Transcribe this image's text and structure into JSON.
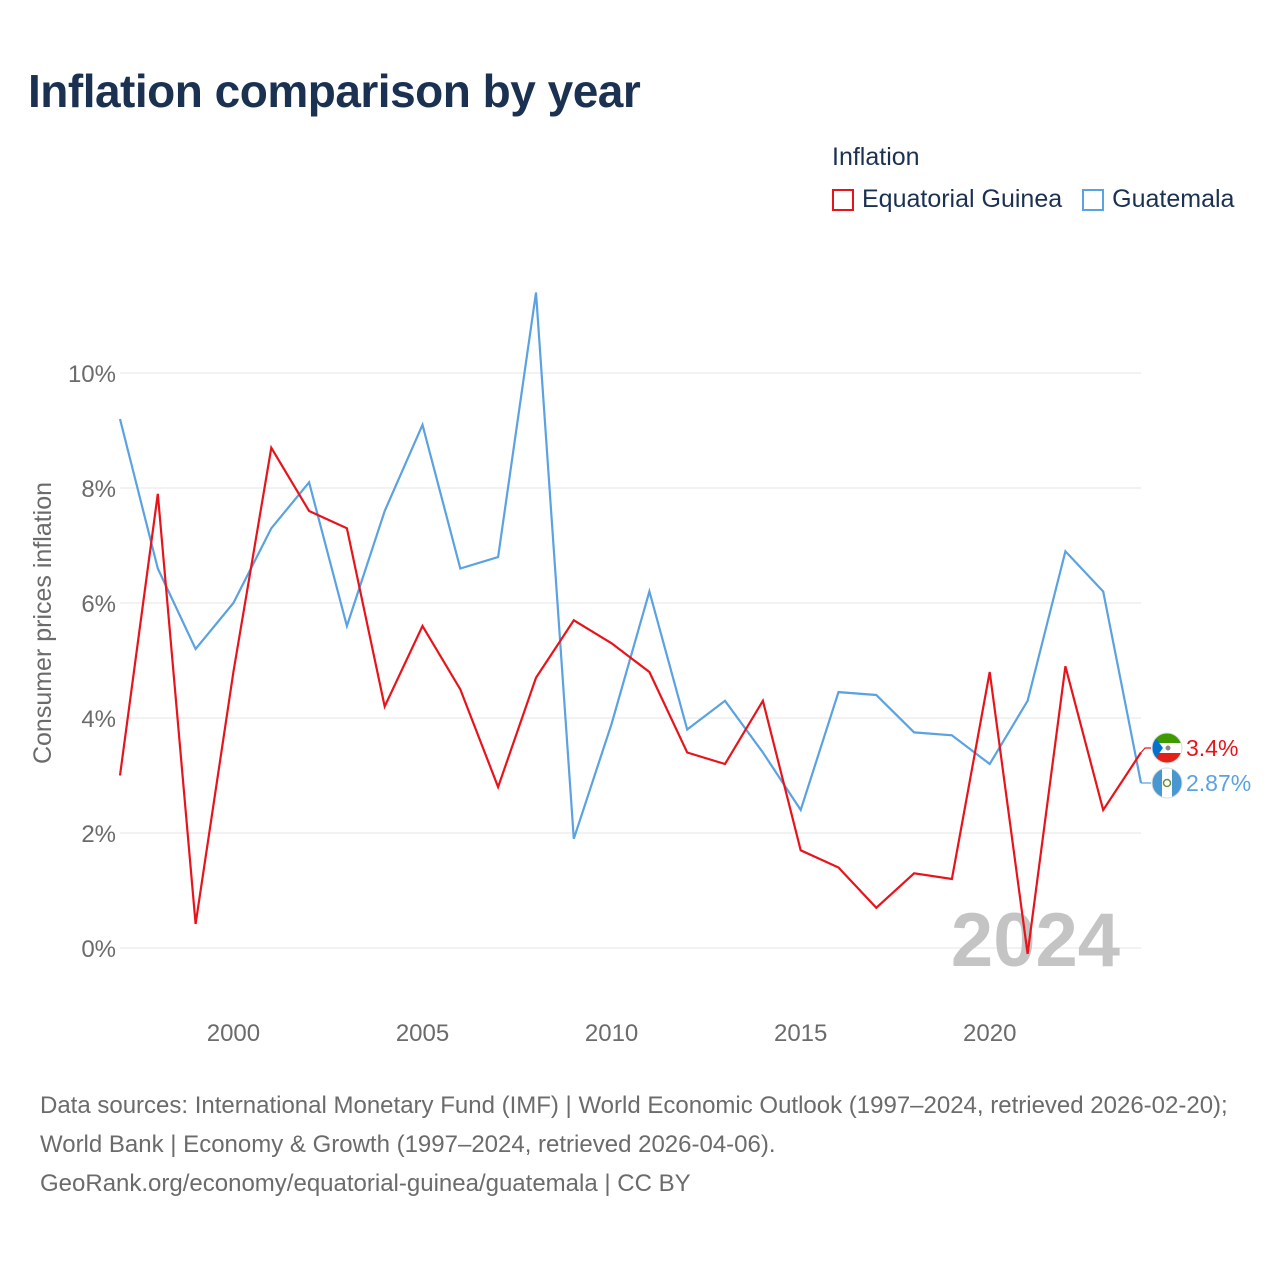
{
  "title": "Inflation comparison by year",
  "legend": {
    "title": "Inflation",
    "items": [
      {
        "name": "Equatorial Guinea",
        "color": "#e8141b"
      },
      {
        "name": "Guatemala",
        "color": "#5aa2e1"
      }
    ]
  },
  "chart_data": {
    "type": "line",
    "title": "Inflation comparison by year",
    "xlabel": "",
    "ylabel": "Consumer prices inflation",
    "x": [
      1997,
      1998,
      1999,
      2000,
      2001,
      2002,
      2003,
      2004,
      2005,
      2006,
      2007,
      2008,
      2009,
      2010,
      2011,
      2012,
      2013,
      2014,
      2015,
      2016,
      2017,
      2018,
      2019,
      2020,
      2021,
      2022,
      2023,
      2024
    ],
    "xlim": [
      1997,
      2024
    ],
    "ylim": [
      -1.0,
      11.5
    ],
    "xticks": [
      2000,
      2005,
      2010,
      2015,
      2020
    ],
    "yticks": [
      0,
      2,
      4,
      6,
      8,
      10
    ],
    "ytick_labels": [
      "0%",
      "2%",
      "4%",
      "6%",
      "8%",
      "10%"
    ],
    "grid": true,
    "year_watermark": "2024",
    "series": [
      {
        "name": "Equatorial Guinea",
        "color": "#e8141b",
        "values": [
          3.0,
          7.9,
          0.42,
          4.8,
          8.7,
          7.6,
          7.3,
          4.2,
          5.6,
          4.5,
          2.8,
          4.7,
          5.7,
          5.3,
          4.8,
          3.4,
          3.2,
          4.3,
          1.7,
          1.4,
          0.7,
          1.3,
          1.2,
          4.8,
          -0.1,
          4.9,
          2.4,
          3.4
        ],
        "end_label": "3.4%",
        "flag_icon": "equatorial-guinea-flag-icon"
      },
      {
        "name": "Guatemala",
        "color": "#5aa2e1",
        "values": [
          9.2,
          6.6,
          5.2,
          6.0,
          7.3,
          8.1,
          5.6,
          7.6,
          9.1,
          6.6,
          6.8,
          11.4,
          1.9,
          3.9,
          6.2,
          3.8,
          4.3,
          3.4,
          2.4,
          4.45,
          4.4,
          3.75,
          3.7,
          3.2,
          4.3,
          6.9,
          6.2,
          2.87
        ],
        "end_label": "2.87%",
        "flag_icon": "guatemala-flag-icon"
      }
    ]
  },
  "footer": {
    "sources": "Data sources: International Monetary Fund (IMF) | World Economic Outlook (1997–2024, retrieved 2026-02-20); World Bank | Economy & Growth (1997–2024, retrieved 2026-04-06).",
    "credit": "GeoRank.org/economy/equatorial-guinea/guatemala | CC BY"
  }
}
